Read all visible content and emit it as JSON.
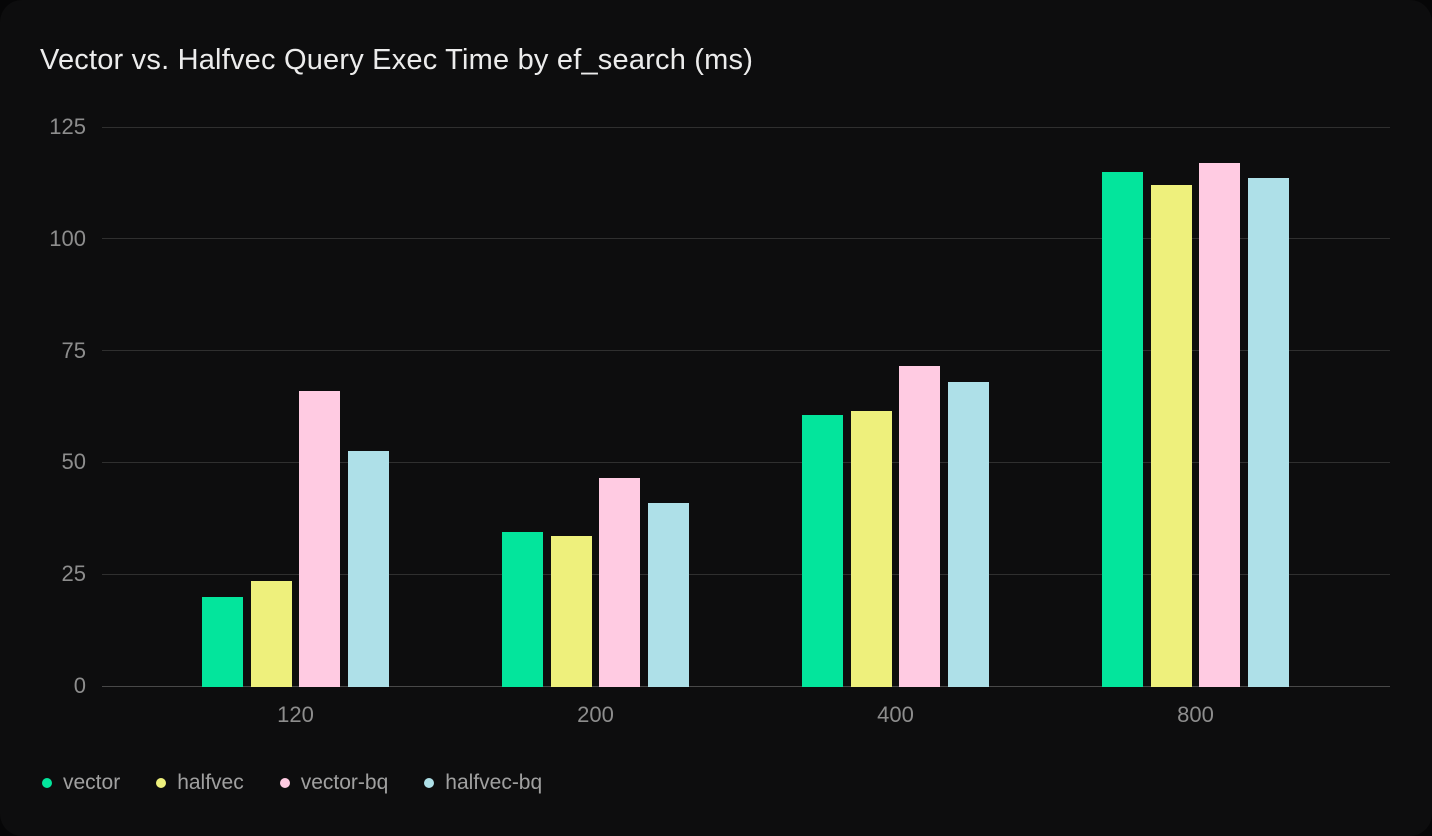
{
  "theme": {
    "page_bg": "#060607",
    "card_bg": "#0d0d0e",
    "title_color": "#ececec",
    "axis_label_color": "#8d8d8d",
    "legend_label_color": "#a0a0a0",
    "gridline_color": "#2f2f2f",
    "zero_line_color": "#484848"
  },
  "chart_data": {
    "type": "bar",
    "title": "Vector vs. Halfvec Query Exec Time by ef_search (ms)",
    "xlabel": "",
    "ylabel": "",
    "categories": [
      "120",
      "200",
      "400",
      "800"
    ],
    "series": [
      {
        "name": "vector",
        "color": "#03e59c",
        "values": [
          20,
          34.5,
          60.5,
          115
        ]
      },
      {
        "name": "halfvec",
        "color": "#eef07c",
        "values": [
          23.5,
          33.5,
          61.5,
          112
        ]
      },
      {
        "name": "vector-bq",
        "color": "#ffcbe2",
        "values": [
          66,
          46.5,
          71.5,
          117
        ]
      },
      {
        "name": "halfvec-bq",
        "color": "#aee0e8",
        "values": [
          52.5,
          41,
          68,
          113.5
        ]
      }
    ],
    "ylim": [
      0,
      125
    ],
    "yticks": [
      0,
      25,
      50,
      75,
      100,
      125
    ],
    "grid": true,
    "legend_position": "bottom-left",
    "legend": [
      "vector",
      "halfvec",
      "vector-bq",
      "halfvec-bq"
    ]
  }
}
